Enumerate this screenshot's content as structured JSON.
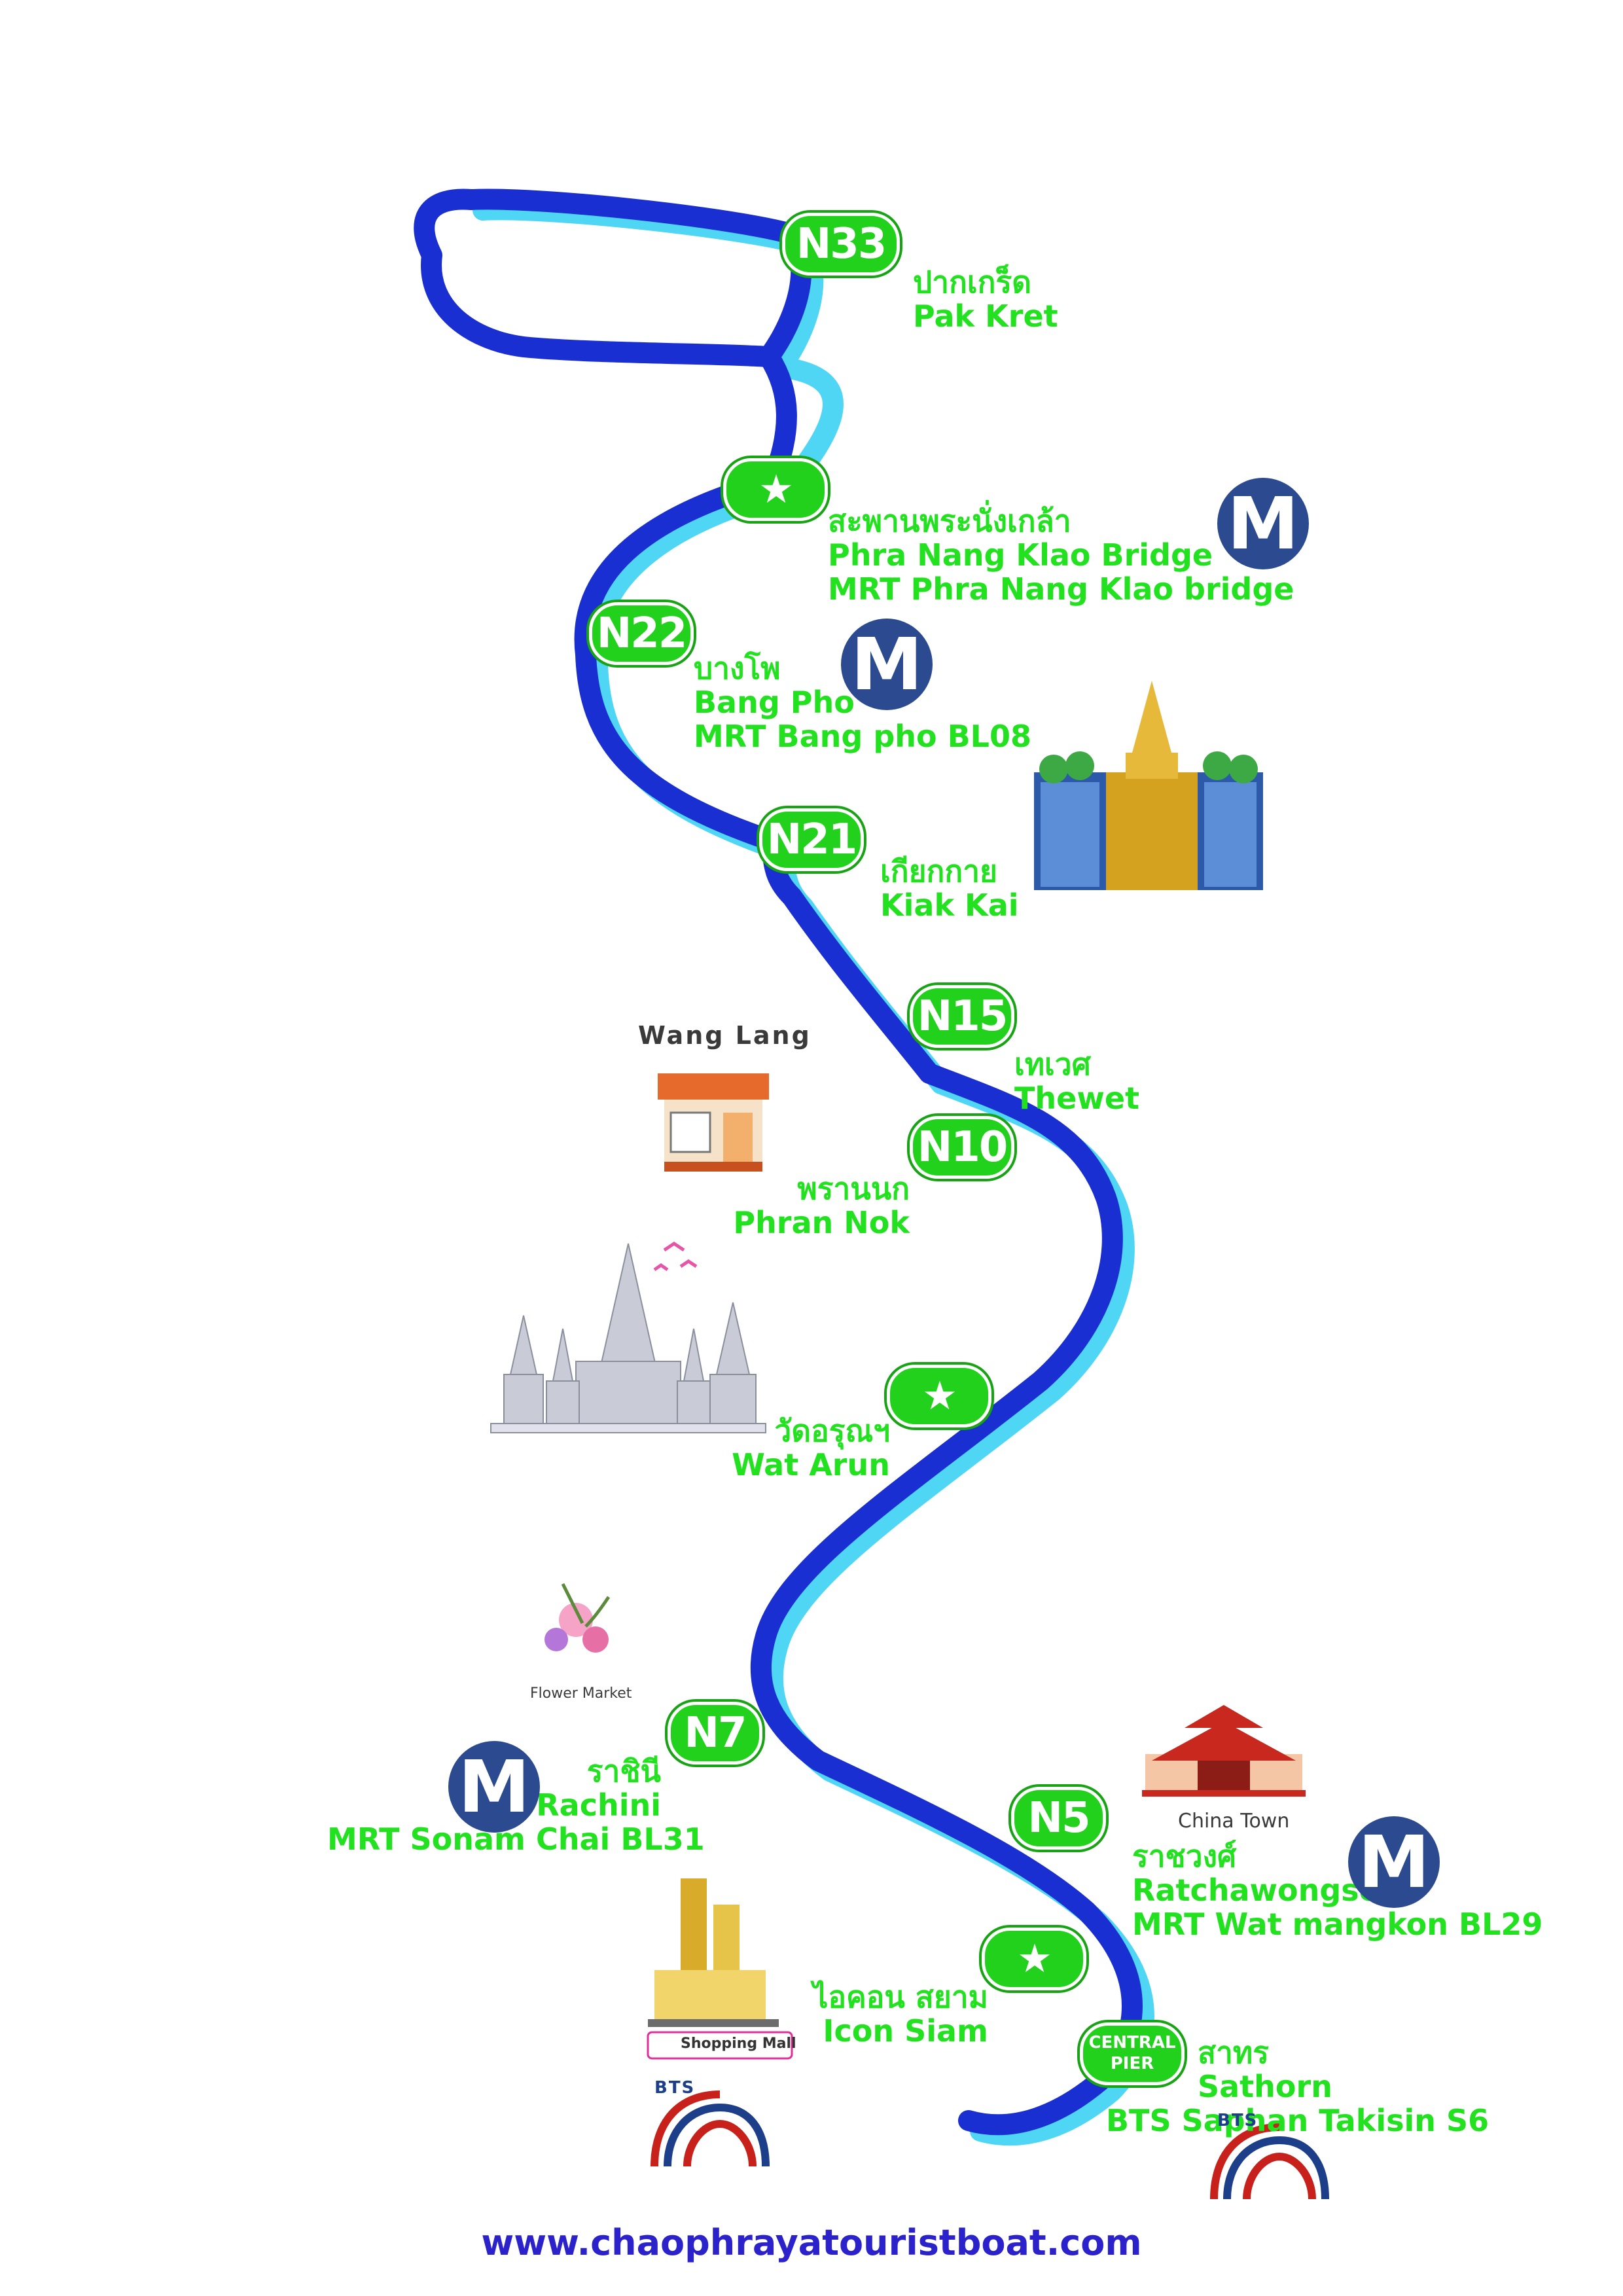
{
  "map": {
    "river_color": "#1a2fd1",
    "river_shadow_color": "#4fd6f5",
    "pier_color": "#22d11c",
    "mrt_color": "#2b4a8f",
    "text_color": "#22e11f"
  },
  "piers": [
    {
      "id": "N33",
      "badge": "N33",
      "thai": "ปากเกร็ด",
      "english": "Pak Kret",
      "extra": ""
    },
    {
      "id": "star1",
      "badge": "★",
      "thai": "สะพานพระนั่งเกล้า",
      "english": "Phra Nang Klao Bridge",
      "extra": "MRT Phra Nang Klao bridge"
    },
    {
      "id": "N22",
      "badge": "N22",
      "thai": "บางโพ",
      "english": "Bang Pho",
      "extra": "MRT Bang pho BL08"
    },
    {
      "id": "N21",
      "badge": "N21",
      "thai": "เกียกกาย",
      "english": "Kiak Kai",
      "extra": ""
    },
    {
      "id": "N15",
      "badge": "N15",
      "thai": "เทเวศ",
      "english": "Thewet",
      "extra": ""
    },
    {
      "id": "N10",
      "badge": "N10",
      "thai": "พรานนก",
      "english": "Phran Nok",
      "extra": ""
    },
    {
      "id": "star2",
      "badge": "★",
      "thai": "วัดอรุณฯ",
      "english": "Wat Arun",
      "extra": ""
    },
    {
      "id": "N7",
      "badge": "N7",
      "thai": "ราชินี",
      "english": "Rachini",
      "extra": "MRT Sonam Chai BL31"
    },
    {
      "id": "N5",
      "badge": "N5",
      "thai": "ราชวงศ์",
      "english": "Ratchawongse",
      "extra": "MRT Wat mangkon BL29"
    },
    {
      "id": "star3",
      "badge": "★",
      "thai": "ไอคอน สยาม",
      "english": "Icon Siam",
      "extra": ""
    },
    {
      "id": "central",
      "badge": "CENTRAL PIER",
      "thai": "สาทร",
      "english": "Sathorn",
      "extra": "BTS Saphan Takisin S6"
    }
  ],
  "mrt_icon_label": "M",
  "bts_label": "BTS",
  "landmarks": {
    "wang_lang": "Wang Lang",
    "flower_market": "Flower Market",
    "china_town": "China Town",
    "shopping_mall": "Shopping Mall"
  },
  "website": "www.chaophrayatouristboat.com"
}
